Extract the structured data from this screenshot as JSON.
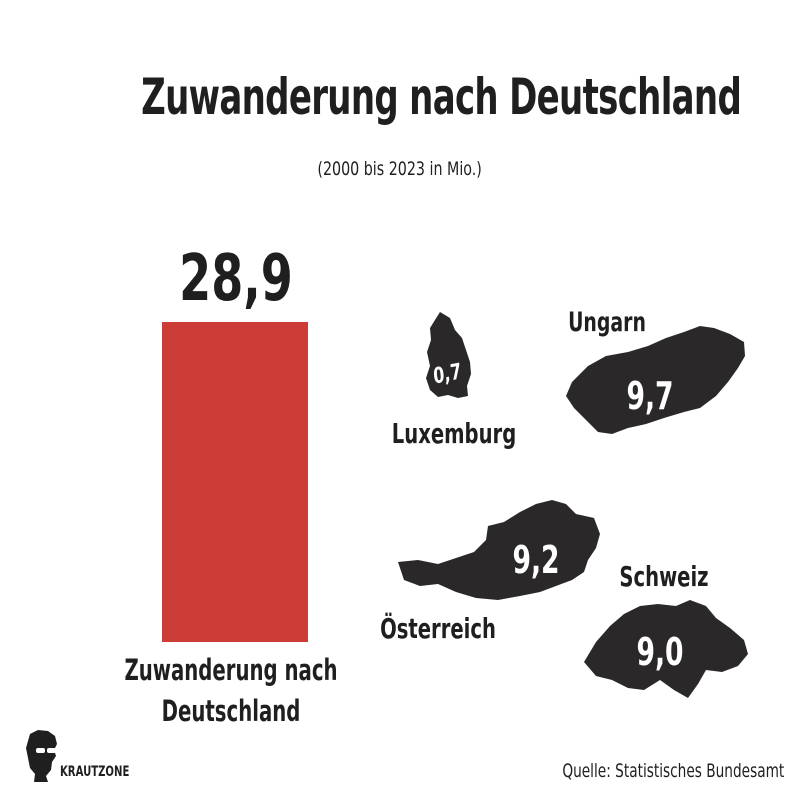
{
  "title": "Zuwanderung nach Deutschland",
  "subtitle": "(2000 bis 2023 in Mio.)",
  "source": "Quelle: Statistisches Bundesamt",
  "brand": "KRAUTZONE",
  "colors": {
    "bar": "#cb3d36",
    "country": "#2a2828",
    "text": "#1f1f1f",
    "value_on_map": "#ffffff"
  },
  "chart_data": {
    "type": "bar",
    "title": "Zuwanderung nach Deutschland",
    "subtitle": "(2000 bis 2023 in Mio.)",
    "ylim": [
      0,
      28.9
    ],
    "bar": {
      "category": "Zuwanderung nach Deutschland",
      "category_lines": [
        "Zuwanderung nach",
        "Deutschland"
      ],
      "value": 28.9,
      "value_label": "28,9"
    },
    "comparisons": [
      {
        "name": "Luxemburg",
        "value": 0.7,
        "value_label": "0,7",
        "shape": "luxembourg-map-icon"
      },
      {
        "name": "Ungarn",
        "value": 9.7,
        "value_label": "9,7",
        "shape": "hungary-map-icon"
      },
      {
        "name": "Österreich",
        "value": 9.2,
        "value_label": "9,2",
        "shape": "austria-map-icon"
      },
      {
        "name": "Schweiz",
        "value": 9.0,
        "value_label": "9,0",
        "shape": "switzerland-map-icon"
      }
    ]
  }
}
